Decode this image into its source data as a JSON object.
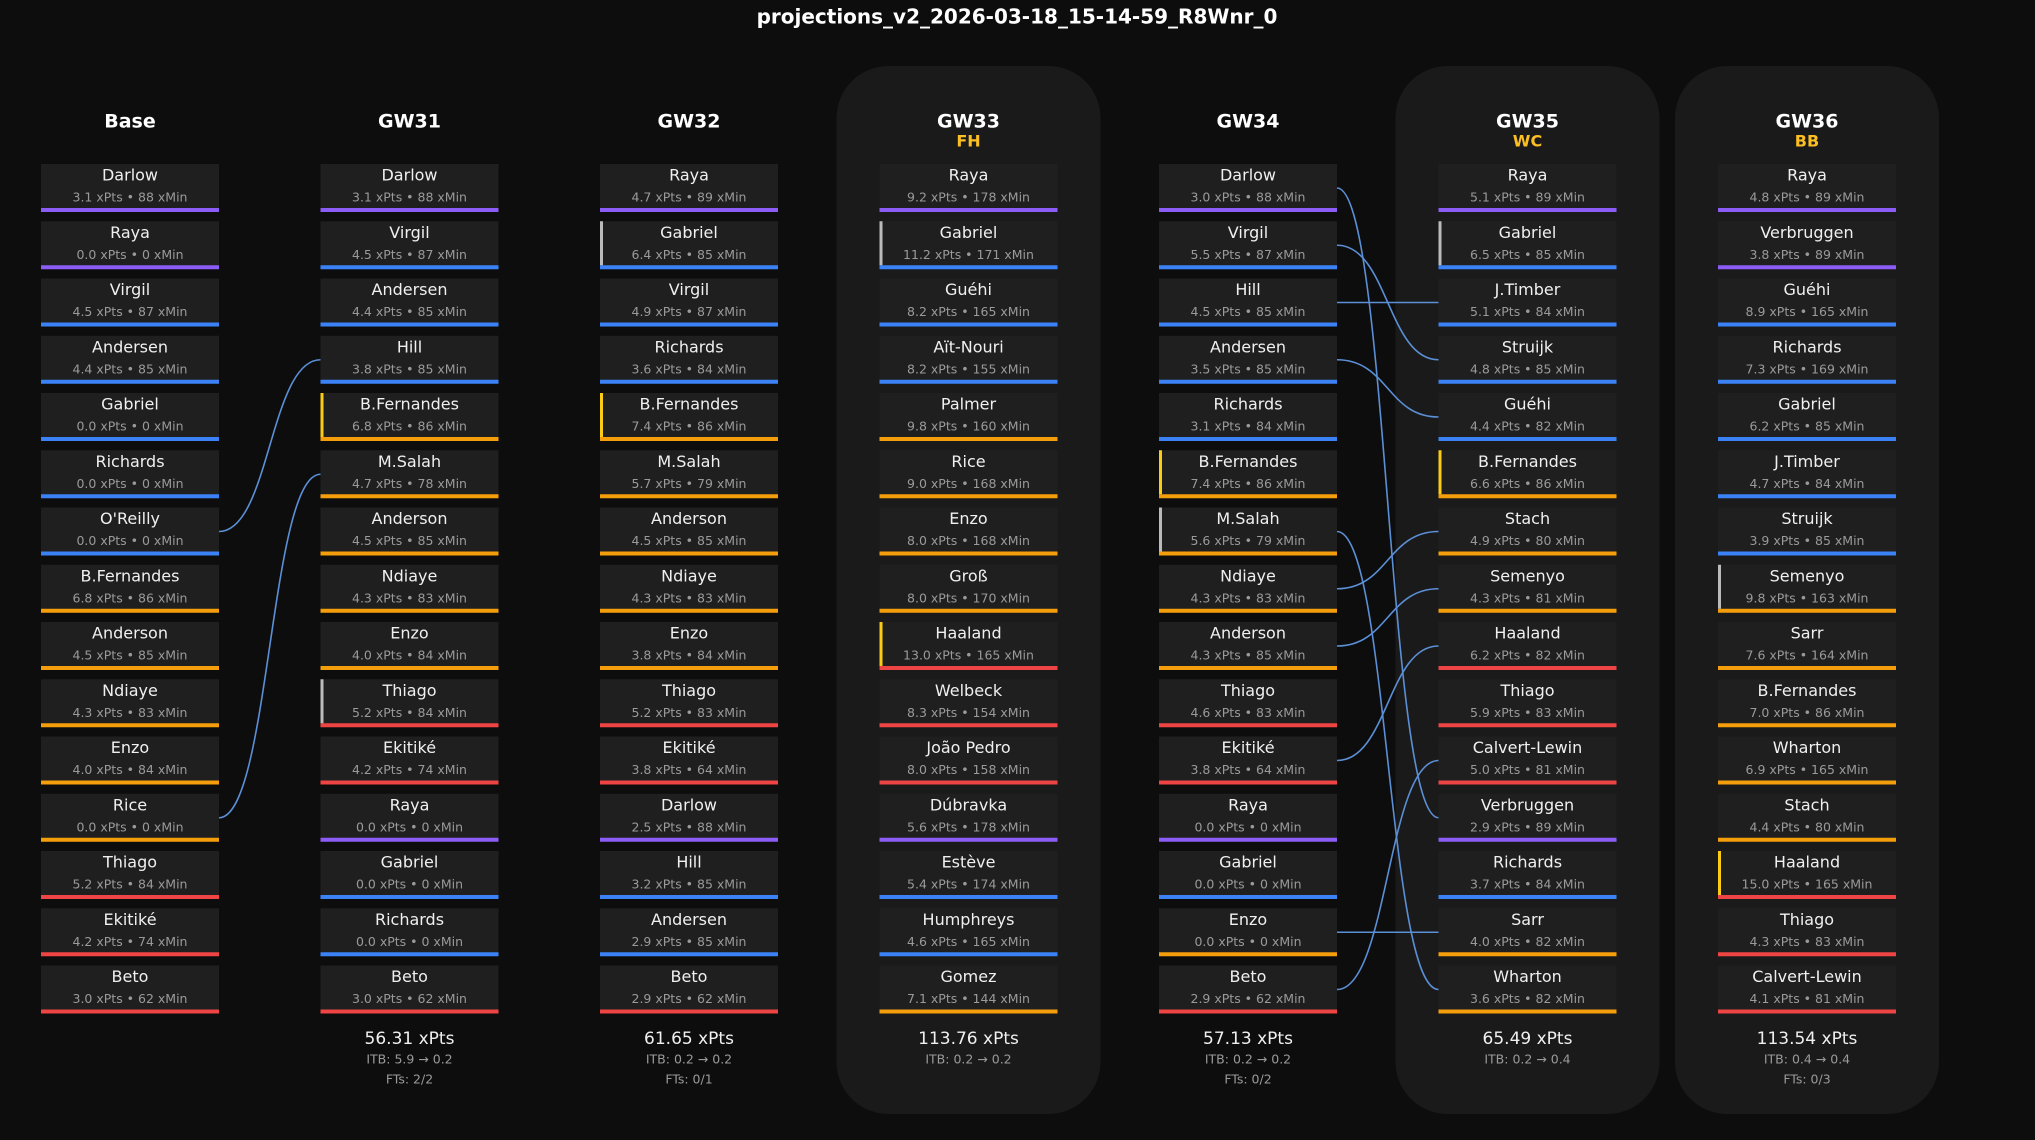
{
  "title": "projections_v2_2026-03-18_15-14-59_R8Wnr_0",
  "columns": [
    {
      "name": "Base",
      "players": [
        [
          "Darlow",
          "3.1 xPts • 88 xMin",
          "#8b5cf6"
        ],
        [
          "Raya",
          "0.0 xPts • 0 xMin",
          "#8b5cf6"
        ],
        [
          "Virgil",
          "4.5 xPts • 87 xMin",
          "#3b82f6"
        ],
        [
          "Andersen",
          "4.4 xPts • 85 xMin",
          "#3b82f6"
        ],
        [
          "Gabriel",
          "0.0 xPts • 0 xMin",
          "#3b82f6"
        ],
        [
          "Richards",
          "0.0 xPts • 0 xMin",
          "#3b82f6"
        ],
        [
          "O'Reilly",
          "0.0 xPts • 0 xMin",
          "#3b82f6"
        ],
        [
          "B.Fernandes",
          "6.8 xPts • 86 xMin",
          "#f59e0b"
        ],
        [
          "Anderson",
          "4.5 xPts • 85 xMin",
          "#f59e0b"
        ],
        [
          "Ndiaye",
          "4.3 xPts • 83 xMin",
          "#f59e0b"
        ],
        [
          "Enzo",
          "4.0 xPts • 84 xMin",
          "#f59e0b"
        ],
        [
          "Rice",
          "0.0 xPts • 0 xMin",
          "#f59e0b"
        ],
        [
          "Thiago",
          "5.2 xPts • 84 xMin",
          "#ef4444"
        ],
        [
          "Ekitiké",
          "4.2 xPts • 74 xMin",
          "#ef4444"
        ],
        [
          "Beto",
          "3.0 xPts • 62 xMin",
          "#ef4444"
        ]
      ]
    },
    {
      "name": "GW31",
      "players": [
        [
          "Darlow",
          "3.1 xPts • 88 xMin",
          "#8b5cf6"
        ],
        [
          "Virgil",
          "4.5 xPts • 87 xMin",
          "#3b82f6"
        ],
        [
          "Andersen",
          "4.4 xPts • 85 xMin",
          "#3b82f6"
        ],
        [
          "Hill",
          "3.8 xPts • 85 xMin",
          "#3b82f6"
        ],
        [
          "B.Fernandes",
          "6.8 xPts • 86 xMin",
          "#f59e0b",
          "#facc15"
        ],
        [
          "M.Salah",
          "4.7 xPts • 78 xMin",
          "#f59e0b"
        ],
        [
          "Anderson",
          "4.5 xPts • 85 xMin",
          "#f59e0b"
        ],
        [
          "Ndiaye",
          "4.3 xPts • 83 xMin",
          "#f59e0b"
        ],
        [
          "Enzo",
          "4.0 xPts • 84 xMin",
          "#f59e0b"
        ],
        [
          "Thiago",
          "5.2 xPts • 84 xMin",
          "#ef4444",
          "#bbbbbb"
        ],
        [
          "Ekitiké",
          "4.2 xPts • 74 xMin",
          "#ef4444"
        ],
        [
          "Raya",
          "0.0 xPts • 0 xMin",
          "#8b5cf6"
        ],
        [
          "Gabriel",
          "0.0 xPts • 0 xMin",
          "#3b82f6"
        ],
        [
          "Richards",
          "0.0 xPts • 0 xMin",
          "#3b82f6"
        ],
        [
          "Beto",
          "3.0 xPts • 62 xMin",
          "#ef4444"
        ]
      ],
      "total": "56.31 xPts",
      "itb": "ITB: 5.9 → 0.2",
      "fts": "FTs: 2/2"
    },
    {
      "name": "GW32",
      "players": [
        [
          "Raya",
          "4.7 xPts • 89 xMin",
          "#8b5cf6"
        ],
        [
          "Gabriel",
          "6.4 xPts • 85 xMin",
          "#3b82f6",
          "#bbbbbb"
        ],
        [
          "Virgil",
          "4.9 xPts • 87 xMin",
          "#3b82f6"
        ],
        [
          "Richards",
          "3.6 xPts • 84 xMin",
          "#3b82f6"
        ],
        [
          "B.Fernandes",
          "7.4 xPts • 86 xMin",
          "#f59e0b",
          "#facc15"
        ],
        [
          "M.Salah",
          "5.7 xPts • 79 xMin",
          "#f59e0b"
        ],
        [
          "Anderson",
          "4.5 xPts • 85 xMin",
          "#f59e0b"
        ],
        [
          "Ndiaye",
          "4.3 xPts • 83 xMin",
          "#f59e0b"
        ],
        [
          "Enzo",
          "3.8 xPts • 84 xMin",
          "#f59e0b"
        ],
        [
          "Thiago",
          "5.2 xPts • 83 xMin",
          "#ef4444"
        ],
        [
          "Ekitiké",
          "3.8 xPts • 64 xMin",
          "#ef4444"
        ],
        [
          "Darlow",
          "2.5 xPts • 88 xMin",
          "#8b5cf6"
        ],
        [
          "Hill",
          "3.2 xPts • 85 xMin",
          "#3b82f6"
        ],
        [
          "Andersen",
          "2.9 xPts • 85 xMin",
          "#3b82f6"
        ],
        [
          "Beto",
          "2.9 xPts • 62 xMin",
          "#ef4444"
        ]
      ],
      "total": "61.65 xPts",
      "itb": "ITB: 0.2 → 0.2",
      "fts": "FTs: 0/1"
    },
    {
      "name": "GW33",
      "chip": "FH",
      "players": [
        [
          "Raya",
          "9.2 xPts • 178 xMin",
          "#8b5cf6"
        ],
        [
          "Gabriel",
          "11.2 xPts • 171 xMin",
          "#3b82f6",
          "#bbbbbb"
        ],
        [
          "Guéhi",
          "8.2 xPts • 165 xMin",
          "#3b82f6"
        ],
        [
          "Aït-Nouri",
          "8.2 xPts • 155 xMin",
          "#3b82f6"
        ],
        [
          "Palmer",
          "9.8 xPts • 160 xMin",
          "#f59e0b"
        ],
        [
          "Rice",
          "9.0 xPts • 168 xMin",
          "#f59e0b"
        ],
        [
          "Enzo",
          "8.0 xPts • 168 xMin",
          "#f59e0b"
        ],
        [
          "Groß",
          "8.0 xPts • 170 xMin",
          "#f59e0b"
        ],
        [
          "Haaland",
          "13.0 xPts • 165 xMin",
          "#ef4444",
          "#facc15"
        ],
        [
          "Welbeck",
          "8.3 xPts • 154 xMin",
          "#ef4444"
        ],
        [
          "João Pedro",
          "8.0 xPts • 158 xMin",
          "#ef4444"
        ],
        [
          "Dúbravka",
          "5.6 xPts • 178 xMin",
          "#8b5cf6"
        ],
        [
          "Estève",
          "5.4 xPts • 174 xMin",
          "#3b82f6"
        ],
        [
          "Humphreys",
          "4.6 xPts • 165 xMin",
          "#3b82f6"
        ],
        [
          "Gomez",
          "7.1 xPts • 144 xMin",
          "#f59e0b"
        ]
      ],
      "total": "113.76 xPts",
      "itb": "ITB: 0.2 → 0.2"
    },
    {
      "name": "GW34",
      "players": [
        [
          "Darlow",
          "3.0 xPts • 88 xMin",
          "#8b5cf6"
        ],
        [
          "Virgil",
          "5.5 xPts • 87 xMin",
          "#3b82f6"
        ],
        [
          "Hill",
          "4.5 xPts • 85 xMin",
          "#3b82f6"
        ],
        [
          "Andersen",
          "3.5 xPts • 85 xMin",
          "#3b82f6"
        ],
        [
          "Richards",
          "3.1 xPts • 84 xMin",
          "#3b82f6"
        ],
        [
          "B.Fernandes",
          "7.4 xPts • 86 xMin",
          "#f59e0b",
          "#facc15"
        ],
        [
          "M.Salah",
          "5.6 xPts • 79 xMin",
          "#f59e0b",
          "#bbbbbb"
        ],
        [
          "Ndiaye",
          "4.3 xPts • 83 xMin",
          "#f59e0b"
        ],
        [
          "Anderson",
          "4.3 xPts • 85 xMin",
          "#f59e0b"
        ],
        [
          "Thiago",
          "4.6 xPts • 83 xMin",
          "#ef4444"
        ],
        [
          "Ekitiké",
          "3.8 xPts • 64 xMin",
          "#ef4444"
        ],
        [
          "Raya",
          "0.0 xPts • 0 xMin",
          "#8b5cf6"
        ],
        [
          "Gabriel",
          "0.0 xPts • 0 xMin",
          "#3b82f6"
        ],
        [
          "Enzo",
          "0.0 xPts • 0 xMin",
          "#f59e0b"
        ],
        [
          "Beto",
          "2.9 xPts • 62 xMin",
          "#ef4444"
        ]
      ],
      "total": "57.13 xPts",
      "itb": "ITB: 0.2 → 0.2",
      "fts": "FTs: 0/2"
    },
    {
      "name": "GW35",
      "chip": "WC",
      "players": [
        [
          "Raya",
          "5.1 xPts • 89 xMin",
          "#8b5cf6"
        ],
        [
          "Gabriel",
          "6.5 xPts • 85 xMin",
          "#3b82f6",
          "#bbbbbb"
        ],
        [
          "J.Timber",
          "5.1 xPts • 84 xMin",
          "#3b82f6"
        ],
        [
          "Struijk",
          "4.8 xPts • 85 xMin",
          "#3b82f6"
        ],
        [
          "Guéhi",
          "4.4 xPts • 82 xMin",
          "#3b82f6"
        ],
        [
          "B.Fernandes",
          "6.6 xPts • 86 xMin",
          "#f59e0b",
          "#facc15"
        ],
        [
          "Stach",
          "4.9 xPts • 80 xMin",
          "#f59e0b"
        ],
        [
          "Semenyo",
          "4.3 xPts • 81 xMin",
          "#f59e0b"
        ],
        [
          "Haaland",
          "6.2 xPts • 82 xMin",
          "#ef4444"
        ],
        [
          "Thiago",
          "5.9 xPts • 83 xMin",
          "#ef4444"
        ],
        [
          "Calvert-Lewin",
          "5.0 xPts • 81 xMin",
          "#ef4444"
        ],
        [
          "Verbruggen",
          "2.9 xPts • 89 xMin",
          "#8b5cf6"
        ],
        [
          "Richards",
          "3.7 xPts • 84 xMin",
          "#3b82f6"
        ],
        [
          "Sarr",
          "4.0 xPts • 82 xMin",
          "#f59e0b"
        ],
        [
          "Wharton",
          "3.6 xPts • 82 xMin",
          "#f59e0b"
        ]
      ],
      "total": "65.49 xPts",
      "itb": "ITB: 0.2 → 0.4"
    },
    {
      "name": "GW36",
      "chip": "BB",
      "players": [
        [
          "Raya",
          "4.8 xPts • 89 xMin",
          "#8b5cf6"
        ],
        [
          "Verbruggen",
          "3.8 xPts • 89 xMin",
          "#8b5cf6"
        ],
        [
          "Guéhi",
          "8.9 xPts • 165 xMin",
          "#3b82f6"
        ],
        [
          "Richards",
          "7.3 xPts • 169 xMin",
          "#3b82f6"
        ],
        [
          "Gabriel",
          "6.2 xPts • 85 xMin",
          "#3b82f6"
        ],
        [
          "J.Timber",
          "4.7 xPts • 84 xMin",
          "#3b82f6"
        ],
        [
          "Struijk",
          "3.9 xPts • 85 xMin",
          "#3b82f6"
        ],
        [
          "Semenyo",
          "9.8 xPts • 163 xMin",
          "#f59e0b",
          "#bbbbbb"
        ],
        [
          "Sarr",
          "7.6 xPts • 164 xMin",
          "#f59e0b"
        ],
        [
          "B.Fernandes",
          "7.0 xPts • 86 xMin",
          "#f59e0b"
        ],
        [
          "Wharton",
          "6.9 xPts • 165 xMin",
          "#f59e0b"
        ],
        [
          "Stach",
          "4.4 xPts • 80 xMin",
          "#f59e0b"
        ],
        [
          "Haaland",
          "15.0 xPts • 165 xMin",
          "#ef4444",
          "#facc15"
        ],
        [
          "Thiago",
          "4.3 xPts • 83 xMin",
          "#ef4444"
        ],
        [
          "Calvert-Lewin",
          "4.1 xPts • 81 xMin",
          "#ef4444"
        ]
      ],
      "total": "113.54 xPts",
      "itb": "ITB: 0.4 → 0.4",
      "fts": "FTs: 0/3"
    }
  ]
}
